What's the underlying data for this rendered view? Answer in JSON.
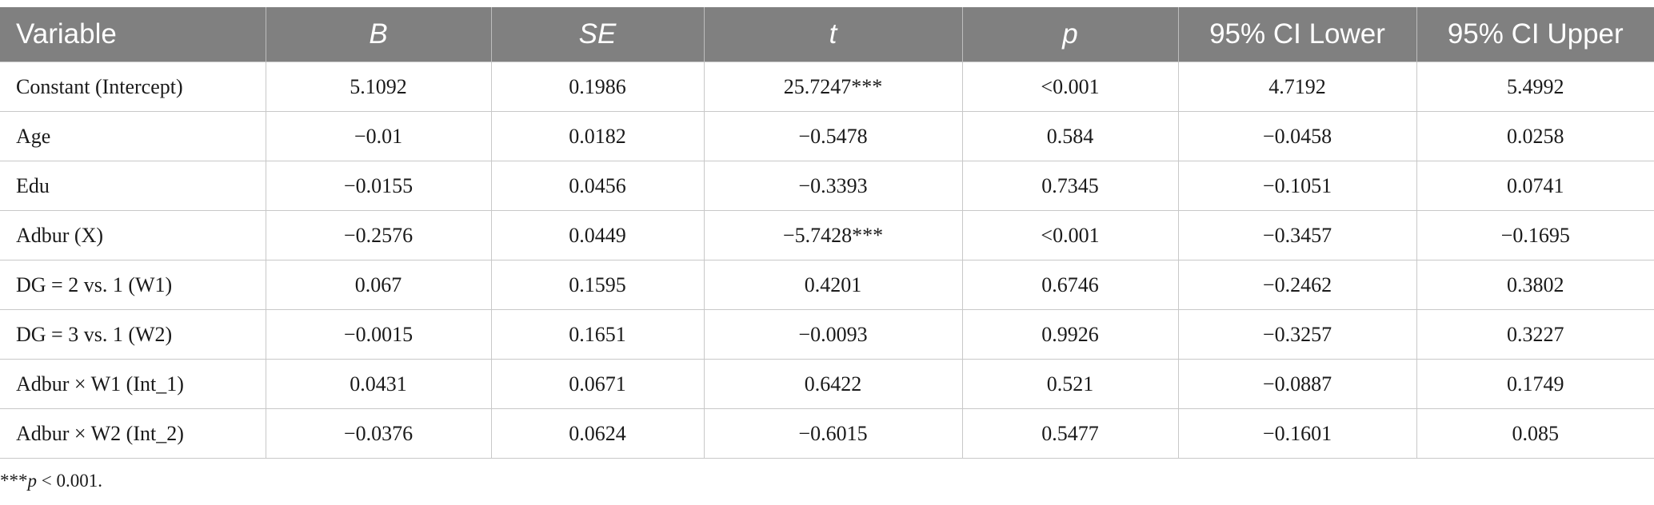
{
  "table": {
    "headers": [
      "Variable",
      "B",
      "SE",
      "t",
      "p",
      "95% CI Lower",
      "95% CI Upper"
    ],
    "rows": [
      [
        "Constant (Intercept)",
        "5.1092",
        "0.1986",
        "25.7247***",
        "<0.001",
        "4.7192",
        "5.4992"
      ],
      [
        "Age",
        "−0.01",
        "0.0182",
        "−0.5478",
        "0.584",
        "−0.0458",
        "0.0258"
      ],
      [
        "Edu",
        "−0.0155",
        "0.0456",
        "−0.3393",
        "0.7345",
        "−0.1051",
        "0.0741"
      ],
      [
        "Adbur (X)",
        "−0.2576",
        "0.0449",
        "−5.7428***",
        "<0.001",
        "−0.3457",
        "−0.1695"
      ],
      [
        "DG = 2 vs. 1 (W1)",
        "0.067",
        "0.1595",
        "0.4201",
        "0.6746",
        "−0.2462",
        "0.3802"
      ],
      [
        "DG = 3 vs. 1 (W2)",
        "−0.0015",
        "0.1651",
        "−0.0093",
        "0.9926",
        "−0.3257",
        "0.3227"
      ],
      [
        "Adbur × W1 (Int_1)",
        "0.0431",
        "0.0671",
        "0.6422",
        "0.521",
        "−0.0887",
        "0.1749"
      ],
      [
        "Adbur × W2 (Int_2)",
        "−0.0376",
        "0.0624",
        "−0.6015",
        "0.5477",
        "−0.1601",
        "0.085"
      ]
    ]
  },
  "footnote": {
    "stars": "***",
    "p_symbol": "p",
    "rest": " < 0.001."
  }
}
